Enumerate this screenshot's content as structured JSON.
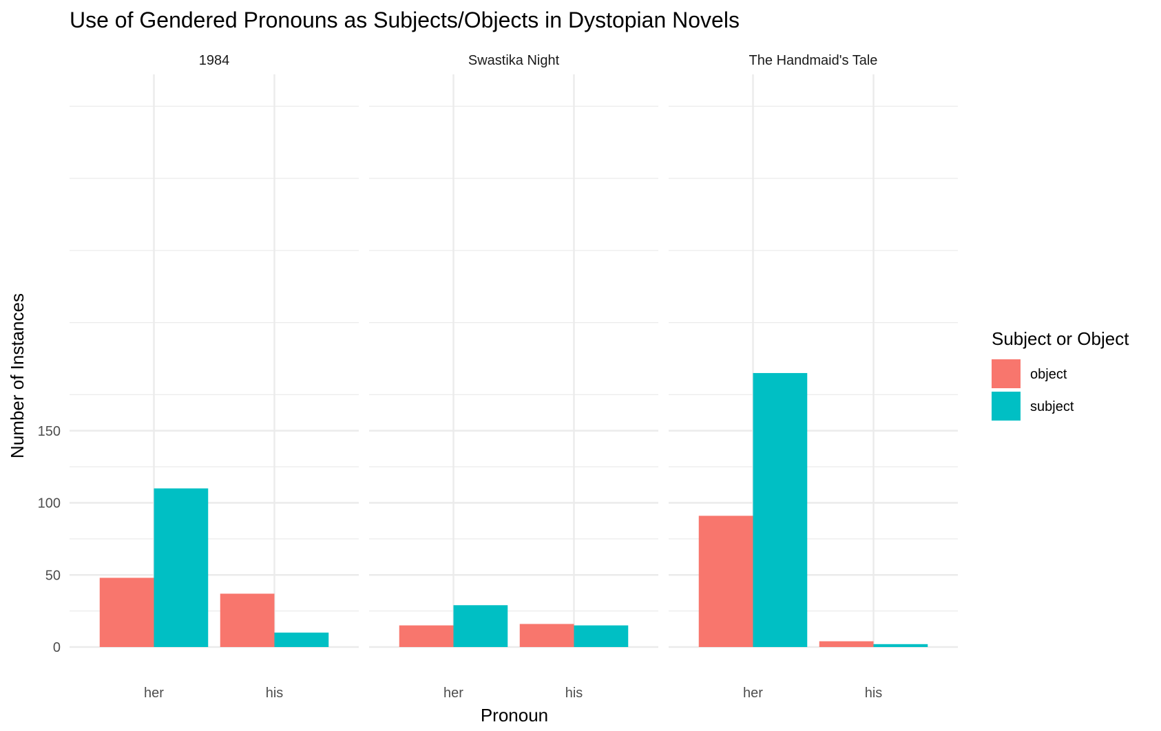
{
  "chart_data": {
    "type": "bar",
    "title": "Use of Gendered Pronouns as Subjects/Objects in Dystopian Novels",
    "xlabel": "Pronoun",
    "ylabel": "Number of Instances",
    "ylim": [
      0,
      200
    ],
    "y_ticks": [
      0,
      50,
      100,
      150
    ],
    "grid": true,
    "legend": {
      "title": "Subject or Object",
      "position": "right",
      "entries": [
        "object",
        "subject"
      ]
    },
    "colors": {
      "object": "#F8766D",
      "subject": "#00BFC4"
    },
    "categories": [
      "her",
      "his"
    ],
    "facets": [
      {
        "name": "1984",
        "series": [
          {
            "name": "object",
            "values": [
              48,
              37
            ]
          },
          {
            "name": "subject",
            "values": [
              110,
              10
            ]
          }
        ]
      },
      {
        "name": "Swastika Night",
        "series": [
          {
            "name": "object",
            "values": [
              15,
              16
            ]
          },
          {
            "name": "subject",
            "values": [
              29,
              15
            ]
          }
        ]
      },
      {
        "name": "The Handmaid's Tale",
        "series": [
          {
            "name": "object",
            "values": [
              91,
              4
            ]
          },
          {
            "name": "subject",
            "values": [
              190,
              2
            ]
          }
        ]
      }
    ]
  }
}
